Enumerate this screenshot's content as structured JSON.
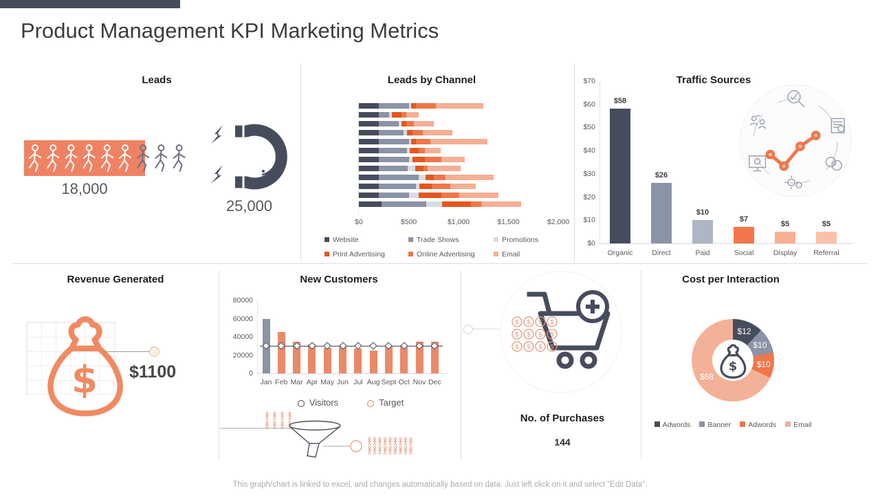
{
  "header": {
    "title": "Product Management KPI Marketing Metrics"
  },
  "footer": {
    "note": "This graph/chart is linked to excel, and changes automatically based on data. Just left click on it and select “Edit Data”."
  },
  "colors": {
    "dark_slate": "#474C5C",
    "gray_blue": "#8B93A6",
    "light_gray_blue": "#AFB6C3",
    "pale_gray": "#D8DBE1",
    "print_red": "#E4571C",
    "orange_strong": "#F0764A",
    "salmon": "#F5AF94",
    "social_orange": "#F3764A",
    "display_peach": "#F7B093",
    "referral_peach": "#F9C1AA",
    "donut_salmon": "#F3B197",
    "nc_orange": "#E98A69",
    "accent_box": "#F08264",
    "bag_orange": "#F08A62",
    "line_dark": "#3F4450",
    "target_orange": "#E8835F",
    "divider": "#DDDDDD",
    "text_dark": "#3C3C3C",
    "text_gray": "#595959",
    "footer_gray": "#ABABAB"
  },
  "panels": {
    "leads": {
      "title": "Leads",
      "highlight_value": "18,000",
      "total_value": "25,000",
      "people_total": 9,
      "people_highlight": 6
    },
    "revenue": {
      "title": "Revenue Generated",
      "value": "$1100"
    },
    "purchases": {
      "title": "No. of Purchases",
      "value": "144",
      "coin_rows": 3,
      "coin_cols": 4
    }
  },
  "chart_data": [
    {
      "id": "leads_by_channel",
      "type": "bar",
      "subtype": "stacked_horizontal",
      "title": "Leads by Channel",
      "xlim": [
        0,
        2000
      ],
      "xticks": [
        "$0",
        "$500",
        "$1,000",
        "$1,500",
        "$2,000"
      ],
      "grid": false,
      "legend_position": "bottom",
      "series": [
        {
          "name": "Website",
          "color": "dark_slate",
          "values": [
            200,
            200,
            200,
            200,
            200,
            200,
            200,
            200,
            200,
            200,
            200,
            225
          ]
        },
        {
          "name": "Trade Shows",
          "color": "gray_blue",
          "values": [
            300,
            100,
            200,
            250,
            300,
            280,
            300,
            290,
            400,
            370,
            300,
            450
          ]
        },
        {
          "name": "Promotions",
          "color": "pale_gray",
          "values": [
            25,
            30,
            25,
            30,
            25,
            30,
            40,
            75,
            70,
            40,
            100,
            160
          ]
        },
        {
          "name": "Print Advertising",
          "color": "print_red",
          "values": [
            50,
            100,
            50,
            60,
            50,
            90,
            125,
            85,
            80,
            125,
            225,
            290
          ]
        },
        {
          "name": "Online Advertising",
          "color": "orange_strong",
          "values": [
            200,
            50,
            75,
            100,
            140,
            60,
            165,
            40,
            120,
            185,
            185,
            100
          ]
        },
        {
          "name": "Email",
          "color": "salmon",
          "values": [
            475,
            120,
            200,
            300,
            575,
            160,
            230,
            330,
            480,
            255,
            390,
            405
          ]
        }
      ]
    },
    {
      "id": "traffic_sources",
      "type": "bar",
      "title": "Traffic Sources",
      "categories": [
        "Organic",
        "Direct",
        "Paid",
        "Social",
        "Display",
        "Referral"
      ],
      "values": [
        58,
        26,
        10,
        7,
        5,
        5
      ],
      "value_labels": [
        "$58",
        "$26",
        "$10",
        "$7",
        "$5",
        "$5"
      ],
      "bar_colors": [
        "dark_slate",
        "gray_blue",
        "light_gray_blue",
        "social_orange",
        "display_peach",
        "referral_peach"
      ],
      "ylim": [
        0,
        70
      ],
      "yticks": [
        "$0",
        "$10",
        "$20",
        "$30",
        "$40",
        "$50",
        "$60",
        "$70"
      ],
      "grid": false
    },
    {
      "id": "new_customers",
      "type": "bar",
      "subtype": "bar_with_target_line",
      "title": "New Customers",
      "categories": [
        "Jan",
        "Feb",
        "Mar",
        "Apr",
        "May",
        "Jun",
        "Jul",
        "Aug",
        "Sept",
        "Oct",
        "Nov",
        "Dec"
      ],
      "values": [
        60000,
        45000,
        35000,
        32000,
        28000,
        30000,
        27000,
        25000,
        30000,
        30000,
        35000,
        35000
      ],
      "bar_color": "nc_orange",
      "first_bar_color": "gray_blue",
      "target_line_value": 30000,
      "ylim": [
        0,
        80000
      ],
      "yticks": [
        "0",
        "20000",
        "40000",
        "60000",
        "80000"
      ],
      "grid": false,
      "legend": [
        {
          "label": "Visitors",
          "marker": "circle",
          "color": "line_dark"
        },
        {
          "label": "Target",
          "marker": "circle",
          "color": "target_orange"
        }
      ]
    },
    {
      "id": "cost_per_interaction",
      "type": "pie",
      "subtype": "donut",
      "title": "Cost per Interaction",
      "slices": [
        {
          "label": "Adwords",
          "value": 12,
          "display": "$12",
          "color": "dark_slate"
        },
        {
          "label": "Banner",
          "value": 10,
          "display": "$10",
          "color": "gray_blue"
        },
        {
          "label": "Adwords",
          "value": 10,
          "display": "$10",
          "color": "orange_strong"
        },
        {
          "label": "Email",
          "value": 68,
          "display": "$68",
          "color": "donut_salmon"
        }
      ],
      "legend_position": "bottom"
    }
  ]
}
